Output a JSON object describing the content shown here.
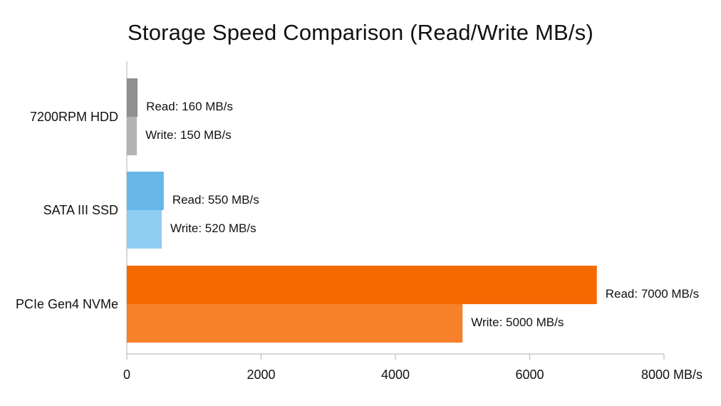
{
  "chart_data": {
    "type": "bar",
    "orientation": "horizontal",
    "title": "Storage Speed Comparison (Read/Write MB/s)",
    "categories": [
      "7200RPM HDD",
      "SATA III SSD",
      "PCIe Gen4 NVMe"
    ],
    "series": [
      {
        "name": "Read",
        "values": [
          160,
          550,
          7000
        ]
      },
      {
        "name": "Write",
        "values": [
          150,
          520,
          5000
        ]
      }
    ],
    "data_labels": [
      [
        "Read: 160 MB/s",
        "Write: 150 MB/s"
      ],
      [
        "Read: 550 MB/s",
        "Write: 520 MB/s"
      ],
      [
        "Read: 7000 MB/s",
        "Write: 5000 MB/s"
      ]
    ],
    "xticks": [
      "0",
      "2000",
      "4000",
      "6000",
      "8000 MB/s"
    ],
    "xtick_values": [
      0,
      2000,
      4000,
      6000,
      8000
    ],
    "xlim": [
      0,
      8000
    ],
    "grid": false,
    "legend": "none",
    "colors": {
      "7200RPM HDD": {
        "Read": "#8f8f8f",
        "Write": "#b3b3b3"
      },
      "SATA III SSD": {
        "Read": "#66b7e8",
        "Write": "#8fcdf2"
      },
      "PCIe Gen4 NVMe": {
        "Read": "#f56a00",
        "Write": "#f7812a"
      }
    }
  }
}
